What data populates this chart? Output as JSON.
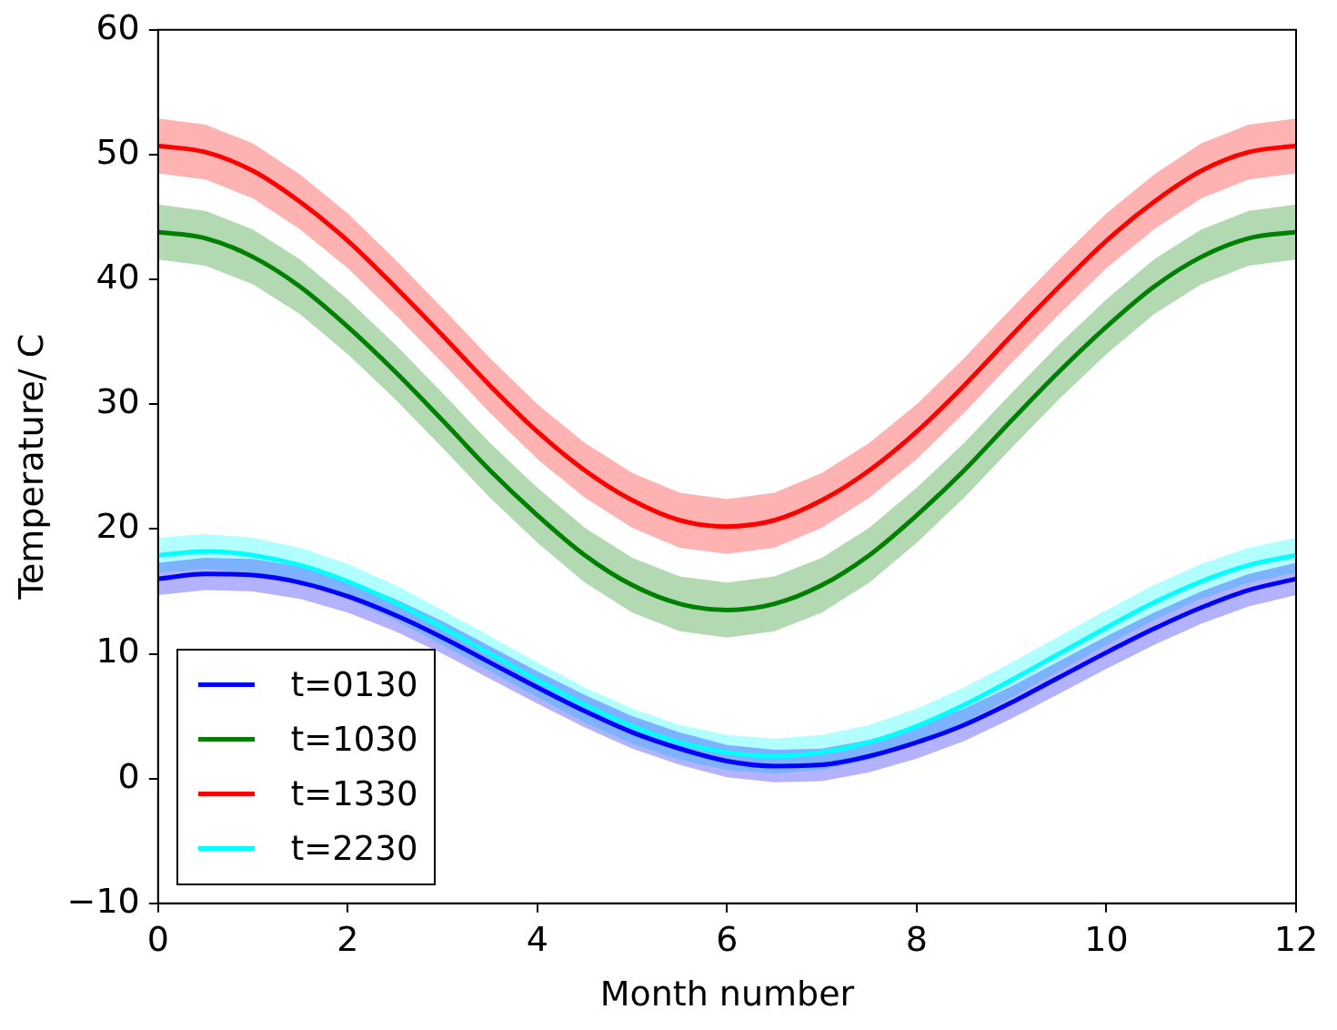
{
  "chart_data": {
    "type": "line",
    "xlabel": "Month number",
    "ylabel": "Temperature/ C",
    "x": [
      0,
      0.5,
      1,
      1.5,
      2,
      2.5,
      3,
      3.5,
      4,
      4.5,
      5,
      5.5,
      6,
      6.5,
      7,
      7.5,
      8,
      8.5,
      9,
      9.5,
      10,
      10.5,
      11,
      11.5,
      12
    ],
    "xlim": [
      0,
      12
    ],
    "xticks": [
      0,
      2,
      4,
      6,
      8,
      10,
      12
    ],
    "ylim": [
      -10,
      60
    ],
    "yticks": [
      -10,
      0,
      10,
      20,
      30,
      40,
      50,
      60
    ],
    "grid": false,
    "legend": "bottom left",
    "marker": "none",
    "line_style": "solid",
    "series": [
      {
        "name": "t=0130",
        "color": "#0000ff",
        "values": [
          16.0,
          16.4,
          16.3,
          15.7,
          14.6,
          13.1,
          11.3,
          9.3,
          7.3,
          5.4,
          3.7,
          2.4,
          1.4,
          1.0,
          1.1,
          1.8,
          2.9,
          4.3,
          6.1,
          8.1,
          10.1,
          12.0,
          13.7,
          15.1,
          16.0
        ],
        "lower": [
          14.7,
          15.1,
          15.0,
          14.4,
          13.3,
          11.8,
          10.0,
          8.0,
          6.0,
          4.1,
          2.4,
          1.1,
          0.1,
          -0.3,
          -0.2,
          0.5,
          1.6,
          3.0,
          4.8,
          6.8,
          8.8,
          10.7,
          12.4,
          13.8,
          14.7
        ],
        "upper": [
          17.3,
          17.7,
          17.6,
          17.0,
          15.9,
          14.4,
          12.6,
          10.6,
          8.6,
          6.7,
          5.0,
          3.7,
          2.7,
          2.3,
          2.4,
          3.1,
          4.2,
          5.6,
          7.4,
          9.4,
          11.4,
          13.3,
          15.0,
          16.4,
          17.3
        ]
      },
      {
        "name": "t=1030",
        "color": "#008000",
        "values": [
          43.8,
          43.3,
          41.8,
          39.4,
          36.2,
          32.6,
          28.7,
          24.7,
          21.1,
          17.9,
          15.5,
          14.0,
          13.5,
          14.0,
          15.5,
          17.9,
          21.1,
          24.7,
          28.7,
          32.6,
          36.2,
          39.4,
          41.8,
          43.3,
          43.8
        ],
        "lower": [
          41.6,
          41.1,
          39.6,
          37.2,
          34.0,
          30.4,
          26.5,
          22.5,
          18.9,
          15.7,
          13.3,
          11.8,
          11.3,
          11.8,
          13.3,
          15.7,
          18.9,
          22.5,
          26.5,
          30.4,
          34.0,
          37.2,
          39.6,
          41.1,
          41.6
        ],
        "upper": [
          46.0,
          45.5,
          44.0,
          41.6,
          38.4,
          34.8,
          30.9,
          26.9,
          23.3,
          20.1,
          17.7,
          16.2,
          15.7,
          16.2,
          17.7,
          20.1,
          23.3,
          26.9,
          30.9,
          34.8,
          38.4,
          41.6,
          44.0,
          45.5,
          46.0
        ]
      },
      {
        "name": "t=1330",
        "color": "#ff0000",
        "values": [
          50.7,
          50.2,
          48.7,
          46.2,
          43.1,
          39.4,
          35.5,
          31.5,
          27.8,
          24.7,
          22.3,
          20.7,
          20.2,
          20.7,
          22.3,
          24.7,
          27.8,
          31.5,
          35.5,
          39.4,
          43.1,
          46.2,
          48.7,
          50.2,
          50.7
        ],
        "lower": [
          48.5,
          48.0,
          46.5,
          44.0,
          40.9,
          37.2,
          33.3,
          29.3,
          25.6,
          22.5,
          20.1,
          18.5,
          18.0,
          18.5,
          20.1,
          22.5,
          25.6,
          29.3,
          33.3,
          37.2,
          40.9,
          44.0,
          46.5,
          48.0,
          48.5
        ],
        "upper": [
          52.9,
          52.4,
          50.9,
          48.4,
          45.3,
          41.6,
          37.7,
          33.7,
          30.0,
          26.9,
          24.5,
          22.9,
          22.4,
          22.9,
          24.5,
          26.9,
          30.0,
          33.7,
          37.7,
          41.6,
          45.3,
          48.4,
          50.9,
          52.4,
          52.9
        ]
      },
      {
        "name": "t=2230",
        "color": "#00ffff",
        "values": [
          17.9,
          18.2,
          17.9,
          17.1,
          15.8,
          14.1,
          12.1,
          10.0,
          7.9,
          5.9,
          4.2,
          2.9,
          2.1,
          1.8,
          2.1,
          2.9,
          4.2,
          5.9,
          7.9,
          10.0,
          12.1,
          14.1,
          15.8,
          17.1,
          17.9
        ],
        "lower": [
          16.5,
          16.8,
          16.5,
          15.7,
          14.4,
          12.7,
          10.7,
          8.6,
          6.5,
          4.5,
          2.8,
          1.5,
          0.7,
          0.4,
          0.7,
          1.5,
          2.8,
          4.5,
          6.5,
          8.6,
          10.7,
          12.7,
          14.4,
          15.7,
          16.5
        ],
        "upper": [
          19.3,
          19.6,
          19.3,
          18.5,
          17.2,
          15.5,
          13.5,
          11.4,
          9.3,
          7.3,
          5.6,
          4.3,
          3.5,
          3.2,
          3.5,
          4.3,
          5.6,
          7.3,
          9.3,
          11.4,
          13.5,
          15.5,
          17.2,
          18.5,
          19.3
        ]
      }
    ]
  }
}
